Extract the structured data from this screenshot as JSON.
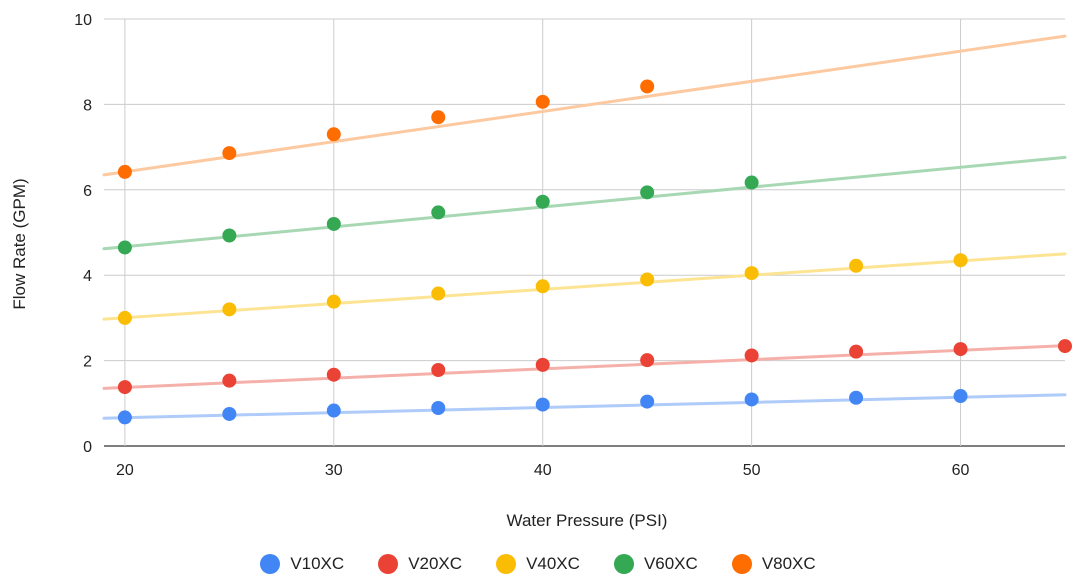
{
  "chart_data": {
    "type": "scatter",
    "title": "",
    "xlabel": "Water Pressure (PSI)",
    "ylabel": "Flow Rate (GPM)",
    "xlim": [
      19,
      65
    ],
    "ylim": [
      0,
      10
    ],
    "x_ticks": [
      "20",
      "30",
      "40",
      "50",
      "60"
    ],
    "y_ticks": [
      "0",
      "2",
      "4",
      "6",
      "8",
      "10"
    ],
    "grid": true,
    "legend_position": "bottom",
    "trendlines": true,
    "series": [
      {
        "name": "V10XC",
        "color": "#4285f4",
        "trend_color": "#aecbfa",
        "x": [
          20,
          25,
          30,
          35,
          40,
          45,
          50,
          55,
          60
        ],
        "y": [
          0.67,
          0.75,
          0.83,
          0.89,
          0.97,
          1.04,
          1.09,
          1.13,
          1.17
        ],
        "trend": {
          "x": [
            19,
            65
          ],
          "y": [
            0.65,
            1.2
          ]
        }
      },
      {
        "name": "V20XC",
        "color": "#ea4335",
        "trend_color": "#f5b0aa",
        "x": [
          20,
          25,
          30,
          35,
          40,
          45,
          50,
          55,
          60,
          65
        ],
        "y": [
          1.38,
          1.53,
          1.67,
          1.78,
          1.9,
          2.01,
          2.12,
          2.21,
          2.27,
          2.34
        ],
        "trend": {
          "x": [
            19,
            65
          ],
          "y": [
            1.35,
            2.35
          ]
        }
      },
      {
        "name": "V40XC",
        "color": "#fbbc04",
        "trend_color": "#fde493",
        "x": [
          20,
          25,
          30,
          35,
          40,
          45,
          50,
          55,
          60
        ],
        "y": [
          3.0,
          3.2,
          3.38,
          3.57,
          3.74,
          3.9,
          4.05,
          4.22,
          4.35
        ],
        "trend": {
          "x": [
            19,
            65
          ],
          "y": [
            2.97,
            4.5
          ]
        }
      },
      {
        "name": "V60XC",
        "color": "#34a853",
        "trend_color": "#a8d8b3",
        "x": [
          20,
          25,
          30,
          35,
          40,
          45,
          50
        ],
        "y": [
          4.65,
          4.93,
          5.2,
          5.47,
          5.72,
          5.94,
          6.17
        ],
        "trend": {
          "x": [
            19,
            65
          ],
          "y": [
            4.62,
            6.76
          ]
        }
      },
      {
        "name": "V80XC",
        "color": "#ff6d01",
        "trend_color": "#fdc9a0",
        "x": [
          20,
          25,
          30,
          35,
          40,
          45
        ],
        "y": [
          6.42,
          6.86,
          7.3,
          7.7,
          8.06,
          8.42
        ],
        "trend": {
          "x": [
            19,
            65
          ],
          "y": [
            6.35,
            9.6
          ]
        }
      }
    ]
  }
}
